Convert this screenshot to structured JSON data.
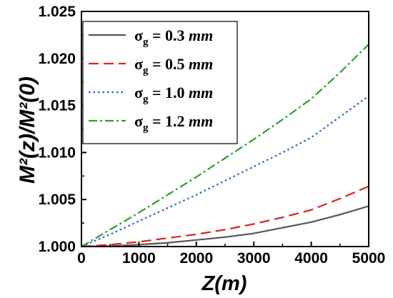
{
  "chart_data": {
    "type": "line",
    "xlabel": "Z(m)",
    "ylabel": "M²(z)/M²(0)",
    "xlim": [
      0,
      5000
    ],
    "ylim": [
      1.0,
      1.025
    ],
    "x_ticks": [
      "0",
      "1000",
      "2000",
      "3000",
      "4000",
      "5000"
    ],
    "y_ticks": [
      "1.000",
      "1.005",
      "1.010",
      "1.015",
      "1.020",
      "1.025"
    ],
    "grid": false,
    "legend_position": "top-left",
    "series": [
      {
        "name": "σg = 0.3 mm",
        "sigma": "σ",
        "sub": "g",
        "value": " = 0.3 ",
        "unit": "mm",
        "color": "#555555",
        "dash": "solid",
        "x": [
          0,
          500,
          1000,
          1500,
          2000,
          2500,
          3000,
          3500,
          4000,
          4500,
          5000
        ],
        "y": [
          1.0,
          1.00005,
          1.0002,
          1.0004,
          1.0007,
          1.001,
          1.0014,
          1.002,
          1.0026,
          1.0034,
          1.0043
        ]
      },
      {
        "name": "σg = 0.5 mm",
        "sigma": "σ",
        "sub": "g",
        "value": " = 0.5 ",
        "unit": "mm",
        "color": "#dd2222",
        "dash": "dashed",
        "x": [
          0,
          500,
          1000,
          1500,
          2000,
          2500,
          3000,
          3500,
          4000,
          4500,
          5000
        ],
        "y": [
          1.0,
          1.0002,
          1.0005,
          1.0009,
          1.0013,
          1.0018,
          1.0024,
          1.0031,
          1.0039,
          1.0051,
          1.0064
        ]
      },
      {
        "name": "σg = 1.0 mm",
        "sigma": "σ",
        "sub": "g",
        "value": " = 1.0 ",
        "unit": "mm",
        "color": "#1a5fd6",
        "dash": "dotted",
        "x": [
          0,
          500,
          1000,
          1500,
          2000,
          2500,
          3000,
          3500,
          4000,
          4500,
          5000
        ],
        "y": [
          1.0,
          1.0013,
          1.0027,
          1.0041,
          1.0055,
          1.007,
          1.0085,
          1.01,
          1.0116,
          1.0138,
          1.016
        ]
      },
      {
        "name": "σg = 1.2 mm",
        "sigma": "σ",
        "sub": "g",
        "value": " = 1.2 ",
        "unit": "mm",
        "color": "#2ca02c",
        "dash": "dashdot",
        "x": [
          0,
          500,
          1000,
          1500,
          2000,
          2500,
          3000,
          3500,
          4000,
          4500,
          5000
        ],
        "y": [
          1.0,
          1.0018,
          1.0036,
          1.0055,
          1.0074,
          1.0094,
          1.0114,
          1.0135,
          1.0157,
          1.0185,
          1.0215
        ]
      }
    ]
  }
}
